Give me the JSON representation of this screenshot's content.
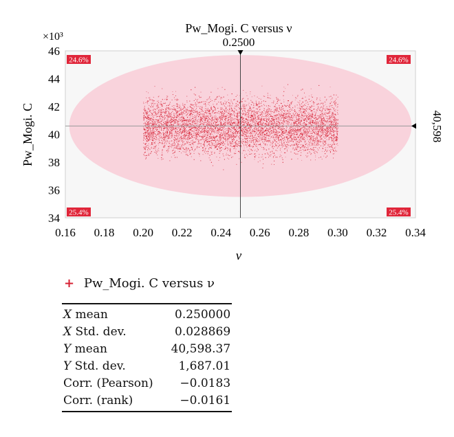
{
  "chart_data": {
    "type": "scatter",
    "title": "Pw_Mogi. C versus ν",
    "xlabel": "ν",
    "ylabel": "Pw_Mogi. C",
    "y_multiplier_label": "×10³",
    "x_ticks": [
      "0.16",
      "0.18",
      "0.20",
      "0.22",
      "0.24",
      "0.26",
      "0.28",
      "0.30",
      "0.32",
      "0.34"
    ],
    "y_ticks": [
      "34",
      "36",
      "38",
      "40",
      "42",
      "44",
      "46"
    ],
    "xlim": [
      0.16,
      0.34
    ],
    "ylim": [
      34000,
      46000
    ],
    "x_range": [
      0.2,
      0.3
    ],
    "y_range": [
      37000,
      44000
    ],
    "x_mean_marker": 0.25,
    "x_mean_marker_label": "0.2500",
    "y_mean_marker": 40598,
    "y_mean_marker_label": "40,598",
    "ellipse": {
      "cx": 0.25,
      "cy": 40598,
      "rx": 0.088,
      "ry": 5100
    },
    "quadrant_percents": {
      "top_left": "24.6%",
      "top_right": "24.6%",
      "bottom_left": "25.4%",
      "bottom_right": "25.4%"
    },
    "series": [
      {
        "name": "Pw_Mogi. C versus ν",
        "color": "#d62033",
        "point_count": 9000
      }
    ],
    "grid": false
  },
  "legend": {
    "marker": "+",
    "label": "Pw_Mogi. C versus ν"
  },
  "stats": [
    {
      "label": "X mean",
      "value": "0.250000"
    },
    {
      "label": "X Std. dev.",
      "value": "0.028869"
    },
    {
      "label": "Y mean",
      "value": "40,598.37"
    },
    {
      "label": "Y Std. dev.",
      "value": "1,687.01"
    },
    {
      "label": "Corr. (Pearson)",
      "value": "−0.0183"
    },
    {
      "label": "Corr. (rank)",
      "value": "−0.0161"
    }
  ],
  "colors": {
    "ellipse_fill": "#f9d3dc",
    "plot_bg": "#f7f7f7",
    "point": "#d62033",
    "quadrant_badge": "#e0263a"
  }
}
